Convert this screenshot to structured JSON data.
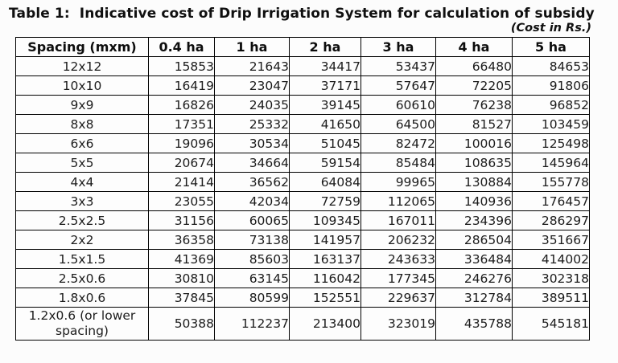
{
  "title": "Table 1:  Indicative cost of Drip Irrigation System for calculation of subsidy",
  "cost_note": "(Cost in Rs.)",
  "table": {
    "columns": [
      "Spacing (mxm)",
      "0.4 ha",
      "1 ha",
      "2 ha",
      "3 ha",
      "4 ha",
      "5 ha"
    ],
    "rows": [
      {
        "spacing": "12x12",
        "values": [
          15853,
          21643,
          34417,
          53437,
          66480,
          84653
        ]
      },
      {
        "spacing": "10x10",
        "values": [
          16419,
          23047,
          37171,
          57647,
          72205,
          91806
        ]
      },
      {
        "spacing": "9x9",
        "values": [
          16826,
          24035,
          39145,
          60610,
          76238,
          96852
        ]
      },
      {
        "spacing": "8x8",
        "values": [
          17351,
          25332,
          41650,
          64500,
          81527,
          103459
        ]
      },
      {
        "spacing": "6x6",
        "values": [
          19096,
          30534,
          51045,
          82472,
          100016,
          125498
        ]
      },
      {
        "spacing": "5x5",
        "values": [
          20674,
          34664,
          59154,
          85484,
          108635,
          145964
        ]
      },
      {
        "spacing": "4x4",
        "values": [
          21414,
          36562,
          64084,
          99965,
          130884,
          155778
        ]
      },
      {
        "spacing": "3x3",
        "values": [
          23055,
          42034,
          72759,
          112065,
          140936,
          176457
        ]
      },
      {
        "spacing": "2.5x2.5",
        "values": [
          31156,
          60065,
          109345,
          167011,
          234396,
          286297
        ]
      },
      {
        "spacing": "2x2",
        "values": [
          36358,
          73138,
          141957,
          206232,
          286504,
          351667
        ]
      },
      {
        "spacing": "1.5x1.5",
        "values": [
          41369,
          85603,
          163137,
          243633,
          336484,
          414002
        ]
      },
      {
        "spacing": "2.5x0.6",
        "values": [
          30810,
          63145,
          116042,
          177345,
          246276,
          302318
        ]
      },
      {
        "spacing": "1.8x0.6",
        "values": [
          37845,
          80599,
          152551,
          229637,
          312784,
          389511
        ]
      },
      {
        "spacing": "1.2x0.6 (or lower spacing)",
        "values": [
          50388,
          112237,
          213400,
          323019,
          435788,
          545181
        ]
      }
    ]
  },
  "chart_data": {
    "type": "table",
    "title": "Table 1:  Indicative cost of Drip Irrigation System for calculation of subsidy",
    "unit_note": "(Cost in Rs.)",
    "columns": [
      "Spacing (mxm)",
      "0.4 ha",
      "1 ha",
      "2 ha",
      "3 ha",
      "4 ha",
      "5 ha"
    ],
    "rows": [
      [
        "12x12",
        15853,
        21643,
        34417,
        53437,
        66480,
        84653
      ],
      [
        "10x10",
        16419,
        23047,
        37171,
        57647,
        72205,
        91806
      ],
      [
        "9x9",
        16826,
        24035,
        39145,
        60610,
        76238,
        96852
      ],
      [
        "8x8",
        17351,
        25332,
        41650,
        64500,
        81527,
        103459
      ],
      [
        "6x6",
        19096,
        30534,
        51045,
        82472,
        100016,
        125498
      ],
      [
        "5x5",
        20674,
        34664,
        59154,
        85484,
        108635,
        145964
      ],
      [
        "4x4",
        21414,
        36562,
        64084,
        99965,
        130884,
        155778
      ],
      [
        "3x3",
        23055,
        42034,
        72759,
        112065,
        140936,
        176457
      ],
      [
        "2.5x2.5",
        31156,
        60065,
        109345,
        167011,
        234396,
        286297
      ],
      [
        "2x2",
        36358,
        73138,
        141957,
        206232,
        286504,
        351667
      ],
      [
        "1.5x1.5",
        41369,
        85603,
        163137,
        243633,
        336484,
        414002
      ],
      [
        "2.5x0.6",
        30810,
        63145,
        116042,
        177345,
        246276,
        302318
      ],
      [
        "1.8x0.6",
        37845,
        80599,
        152551,
        229637,
        312784,
        389511
      ],
      [
        "1.2x0.6 (or lower spacing)",
        50388,
        112237,
        213400,
        323019,
        435788,
        545181
      ]
    ]
  }
}
